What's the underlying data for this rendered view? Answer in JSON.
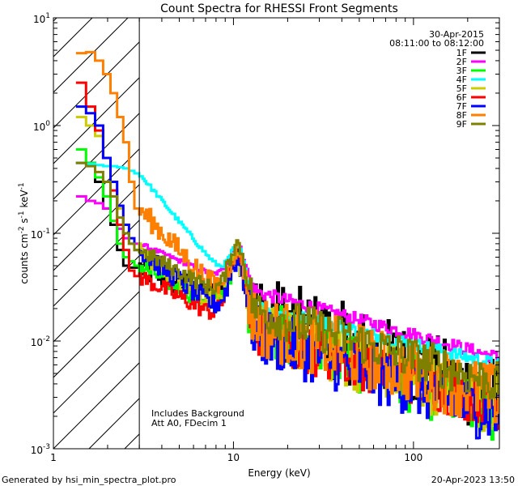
{
  "chart_data": {
    "type": "line",
    "title": "Count Spectra for RHESSI Front Segments",
    "xlabel": "Energy (keV)",
    "ylabel_base": "counts cm",
    "ylabel_sup1": "-2",
    "ylabel_mid": " s",
    "ylabel_sup2": "-1",
    "ylabel_end": " keV",
    "ylabel_sup3": "-1",
    "xscale": "log",
    "yscale": "log",
    "xlim": [
      1,
      300
    ],
    "ylim": [
      0.001,
      10
    ],
    "x_ticks": [
      "1",
      "10",
      "100"
    ],
    "y_ticks": {
      "base": "10",
      "exps": [
        "-3",
        "-2",
        "-1",
        "0",
        "1"
      ]
    },
    "date": "30-Apr-2015",
    "time_range": "08:11:00 to 08:12:00",
    "attenuated_boundary_kev": 3,
    "annotations": [
      "Includes Background",
      "Att A0, FDecim 1"
    ],
    "footer_left": "Generated by hsi_min_spectra_plot.pro",
    "footer_right": "20-Apr-2023 13:50",
    "series": [
      {
        "name": "1F",
        "color": "#000000",
        "low": [
          0.45,
          0.45,
          0.3,
          0.17,
          0.12,
          0.07,
          0.05,
          0.048,
          0.048
        ],
        "peak": 0.07,
        "mid": 0.02,
        "hi": 0.003,
        "scatter": 0.75
      },
      {
        "name": "2F",
        "color": "#ff00ff",
        "low": [
          0.22,
          0.2,
          0.19,
          0.17,
          0.13,
          0.11,
          0.09,
          0.08,
          0.08
        ],
        "peak": 0.09,
        "mid": 0.03,
        "hi": 0.007,
        "scatter": 0.12
      },
      {
        "name": "3F",
        "color": "#00ff00",
        "low": [
          0.6,
          0.45,
          0.33,
          0.22,
          0.13,
          0.08,
          0.06,
          0.055,
          0.05
        ],
        "peak": 0.07,
        "mid": 0.015,
        "hi": 0.002,
        "scatter": 0.55
      },
      {
        "name": "4F",
        "color": "#00ffff",
        "low": [
          0.45,
          0.44,
          0.43,
          0.42,
          0.42,
          0.41,
          0.4,
          0.38,
          0.36
        ],
        "peak": 0.09,
        "mid": 0.022,
        "hi": 0.006,
        "scatter": 0.12
      },
      {
        "name": "5F",
        "color": "#cccc00",
        "low": [
          1.2,
          1.0,
          0.8,
          0.5,
          0.3,
          0.17,
          0.1,
          0.08,
          0.07
        ],
        "peak": 0.07,
        "mid": 0.013,
        "hi": 0.0025,
        "scatter": 0.55
      },
      {
        "name": "6F",
        "color": "#ff0000",
        "low": [
          2.5,
          1.5,
          0.9,
          0.5,
          0.25,
          0.12,
          0.07,
          0.045,
          0.04
        ],
        "peak": 0.08,
        "mid": 0.012,
        "hi": 0.0025,
        "scatter": 0.45
      },
      {
        "name": "7F",
        "color": "#0000ff",
        "low": [
          1.5,
          1.3,
          1.0,
          0.5,
          0.3,
          0.18,
          0.12,
          0.09,
          0.07
        ],
        "peak": 0.07,
        "mid": 0.012,
        "hi": 0.002,
        "scatter": 0.55
      },
      {
        "name": "8F",
        "color": "#ff8000",
        "low": [
          4.7,
          4.8,
          4.0,
          3.0,
          2.0,
          1.2,
          0.7,
          0.3,
          0.17
        ],
        "peak": 0.09,
        "mid": 0.015,
        "hi": 0.003,
        "scatter": 0.6
      },
      {
        "name": "9F",
        "color": "#808000",
        "low": [
          0.45,
          0.42,
          0.37,
          0.3,
          0.22,
          0.14,
          0.1,
          0.08,
          0.07
        ],
        "peak": 0.1,
        "mid": 0.02,
        "hi": 0.004,
        "scatter": 0.4
      }
    ]
  }
}
